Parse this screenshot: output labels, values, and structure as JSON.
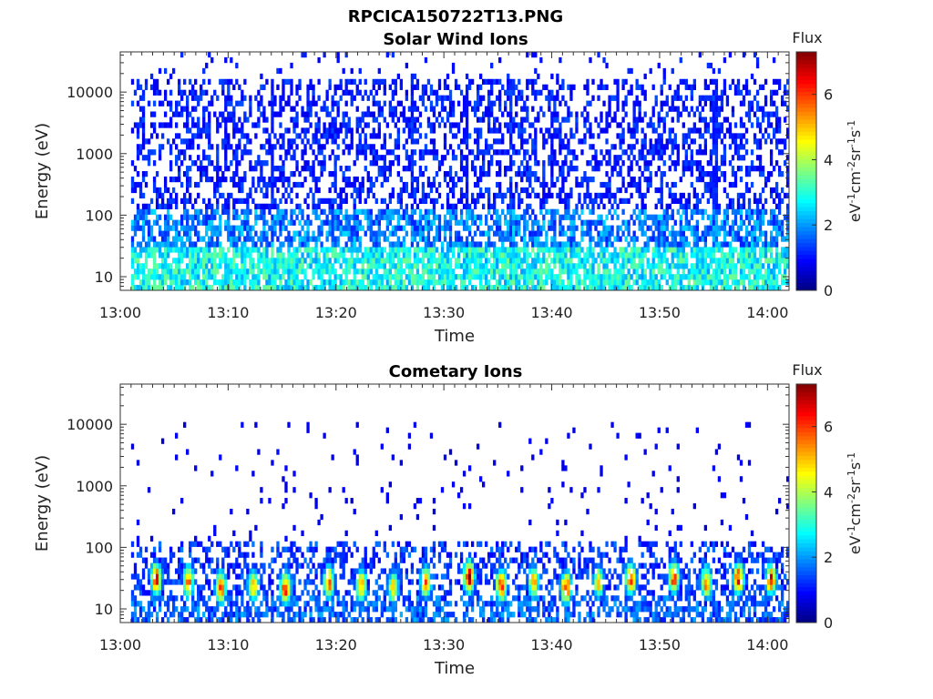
{
  "figure": {
    "filename": "RPCICA150722T13.PNG"
  },
  "colors": {
    "colormap": [
      "#00007f",
      "#0000ff",
      "#0080ff",
      "#00ffff",
      "#80ff80",
      "#ffff00",
      "#ff8000",
      "#ff0000",
      "#7f0000"
    ]
  },
  "chart_data": [
    {
      "type": "heatmap",
      "title": "Solar Wind Ions",
      "xlabel": "Time",
      "ylabel": "Energy (eV)",
      "x_range": [
        "13:00",
        "14:02"
      ],
      "x_ticks": [
        "13:00",
        "13:10",
        "13:20",
        "13:30",
        "13:40",
        "13:50",
        "14:00"
      ],
      "y_scale": "log",
      "y_range": [
        6,
        45000
      ],
      "y_ticks": [
        10,
        100,
        1000,
        10000
      ],
      "y_tick_labels": [
        "10",
        "100",
        "1000",
        "10000"
      ],
      "colorbar": {
        "title": "Flux",
        "label": "eV-1cm-2sr-1s-1",
        "range": [
          0,
          7.3
        ],
        "ticks": [
          0,
          2,
          4,
          6
        ],
        "tick_labels": [
          "0",
          "2",
          "4",
          "6"
        ]
      },
      "pattern": "Sparse blue counts from ~6 eV to ~45000 eV across the whole interval; denser cyan/green (flux ~2-4) below ~60 eV; vertical streaks near 13:14, 13:27, 13:32, 13:36 and 13:55.",
      "observation_start": "13:01",
      "band_flux": [
        {
          "energy_range": [
            6,
            30
          ],
          "typical_flux": 2.5
        },
        {
          "energy_range": [
            30,
            120
          ],
          "typical_flux": 1.6
        },
        {
          "energy_range": [
            120,
            15000
          ],
          "typical_flux": 1.0
        }
      ],
      "streak_times": [
        "13:14",
        "13:27",
        "13:32",
        "13:36",
        "13:55"
      ]
    },
    {
      "type": "heatmap",
      "title": "Cometary Ions",
      "xlabel": "Time",
      "ylabel": "Energy (eV)",
      "x_range": [
        "13:00",
        "14:02"
      ],
      "x_ticks": [
        "13:00",
        "13:10",
        "13:20",
        "13:30",
        "13:40",
        "13:50",
        "14:00"
      ],
      "y_scale": "log",
      "y_range": [
        6,
        45000
      ],
      "y_ticks": [
        10,
        100,
        1000,
        10000
      ],
      "y_tick_labels": [
        "10",
        "100",
        "1000",
        "10000"
      ],
      "colorbar": {
        "title": "Flux",
        "label": "eV-1cm-2sr-1s-1",
        "range": [
          0,
          7.3
        ],
        "ticks": [
          0,
          2,
          4,
          6
        ],
        "tick_labels": [
          "0",
          "2",
          "4",
          "6"
        ]
      },
      "pattern": "Periodic bursts (~3 min) of cometary ions peaking near 20-40 eV with flux up to ~6-7, sparse counts up to ~10000 eV.",
      "observation_start": "13:01",
      "bursts": [
        {
          "time": "13:03",
          "peak_energy": 28,
          "peak_flux": 6.2
        },
        {
          "time": "13:06",
          "peak_energy": 25,
          "peak_flux": 5.6
        },
        {
          "time": "13:09",
          "peak_energy": 20,
          "peak_flux": 5.8
        },
        {
          "time": "13:12",
          "peak_energy": 22,
          "peak_flux": 5.2
        },
        {
          "time": "13:15",
          "peak_energy": 20,
          "peak_flux": 6.0
        },
        {
          "time": "13:19",
          "peak_energy": 25,
          "peak_flux": 5.6
        },
        {
          "time": "13:22",
          "peak_energy": 22,
          "peak_flux": 5.4
        },
        {
          "time": "13:25",
          "peak_energy": 20,
          "peak_flux": 5.0
        },
        {
          "time": "13:28",
          "peak_energy": 25,
          "peak_flux": 5.5
        },
        {
          "time": "13:32",
          "peak_energy": 30,
          "peak_flux": 6.8
        },
        {
          "time": "13:35",
          "peak_energy": 22,
          "peak_flux": 6.2
        },
        {
          "time": "13:38",
          "peak_energy": 25,
          "peak_flux": 5.2
        },
        {
          "time": "13:41",
          "peak_energy": 20,
          "peak_flux": 6.0
        },
        {
          "time": "13:44",
          "peak_energy": 25,
          "peak_flux": 5.0
        },
        {
          "time": "13:47",
          "peak_energy": 28,
          "peak_flux": 6.0
        },
        {
          "time": "13:51",
          "peak_energy": 30,
          "peak_flux": 6.0
        },
        {
          "time": "13:54",
          "peak_energy": 25,
          "peak_flux": 5.6
        },
        {
          "time": "13:57",
          "peak_energy": 28,
          "peak_flux": 6.2
        },
        {
          "time": "14:00",
          "peak_energy": 28,
          "peak_flux": 6.2
        }
      ]
    }
  ]
}
